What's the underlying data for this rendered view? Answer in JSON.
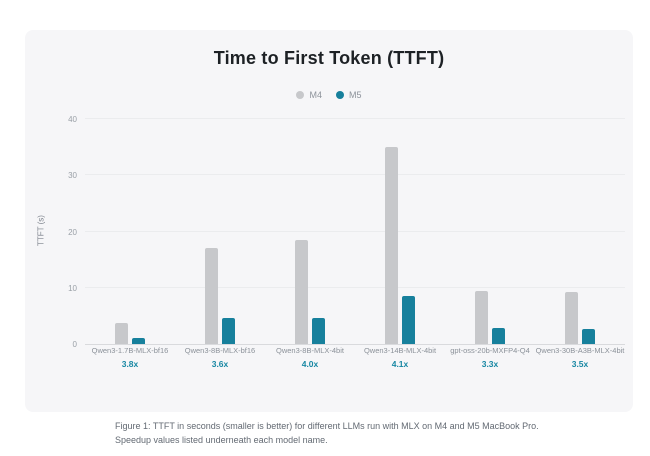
{
  "page": {
    "title": "Time to First Token (TTFT)",
    "caption": "Figure 1: TTFT in seconds (smaller is better) for different LLMs run with MLX on M4 and M5 MacBook Pro. Speedup values listed underneath each model name."
  },
  "colors": {
    "m4_bar": "#c7c8cb",
    "m5_bar": "#17809c",
    "speedup_text": "#1787a3",
    "card_background": "#f6f6f8"
  },
  "chart_data": {
    "type": "bar",
    "title": "Time to First Token (TTFT)",
    "ylabel": "TTFT (s)",
    "xlabel": "",
    "ylim": [
      0,
      40
    ],
    "yticks": [
      0,
      10,
      20,
      30,
      40
    ],
    "grid": true,
    "legend_position": "top-center",
    "categories": [
      "Qwen3-1.7B-MLX-bf16",
      "Qwen3-8B-MLX-bf16",
      "Qwen3-8B-MLX-4bit",
      "Qwen3-14B-MLX-4bit",
      "gpt-oss-20b-MXFP4-Q4",
      "Qwen3-30B-A3B-MLX-4bit"
    ],
    "speedups": [
      "3.8x",
      "3.6x",
      "4.0x",
      "4.1x",
      "3.3x",
      "3.5x"
    ],
    "series": [
      {
        "name": "M4",
        "color": "#c7c8cb",
        "values": [
          3.7,
          17.0,
          18.5,
          35.0,
          9.5,
          9.3
        ]
      },
      {
        "name": "M5",
        "color": "#17809c",
        "values": [
          1.0,
          4.6,
          4.6,
          8.6,
          2.8,
          2.6
        ]
      }
    ]
  }
}
